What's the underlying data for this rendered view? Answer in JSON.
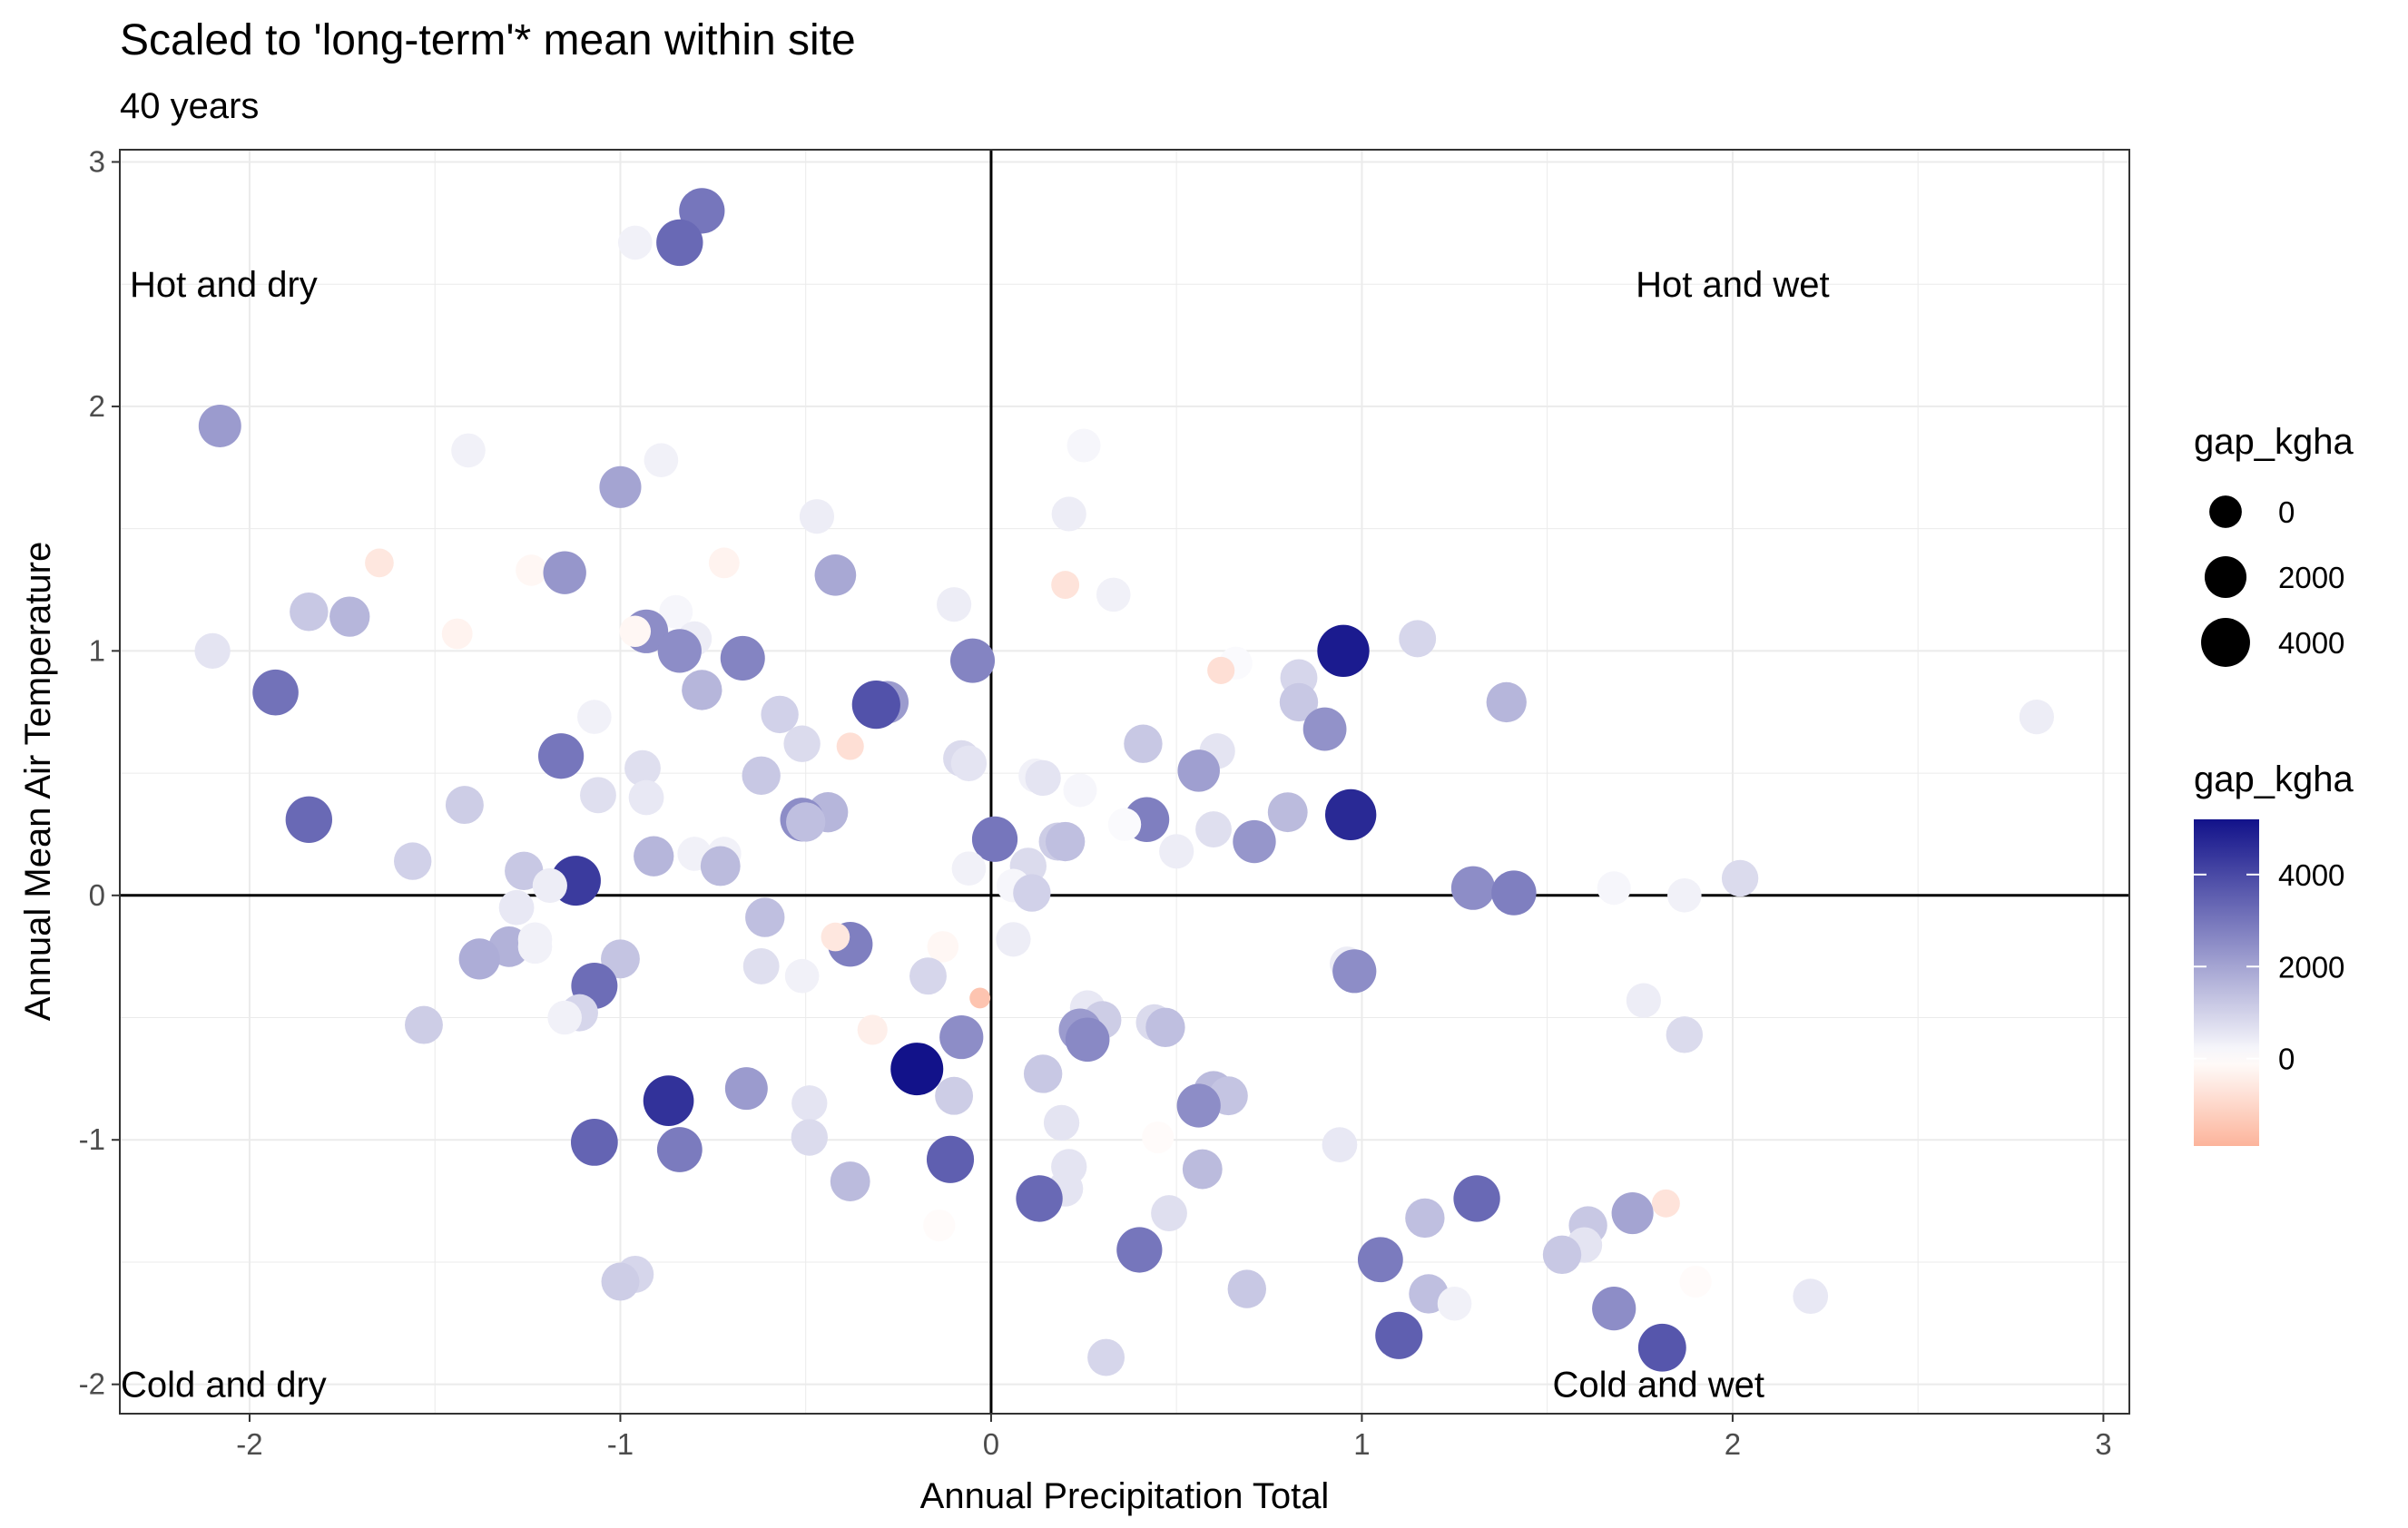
{
  "chart_data": {
    "type": "scatter",
    "title": "Scaled to 'long-term'* mean within site",
    "subtitle": "40 years",
    "xlabel": "Annual Precipitation Total",
    "ylabel": "Annual Mean Air Temperature",
    "xlim": [
      -2.35,
      3.07
    ],
    "ylim": [
      -2.12,
      3.05
    ],
    "x_ticks": [
      -2,
      -1,
      0,
      1,
      2,
      3
    ],
    "y_ticks": [
      -2,
      -1,
      0,
      1,
      2,
      3
    ],
    "x_tick_labels": [
      "-2",
      "-1",
      "0",
      "1",
      "2",
      "3"
    ],
    "y_tick_labels": [
      "-2",
      "-1",
      "0",
      "1",
      "2",
      "3"
    ],
    "grid": true,
    "reference_lines": {
      "x": 0,
      "y": 0
    },
    "quadrant_labels": [
      {
        "text": "Hot and dry",
        "x": -2.07,
        "y": 2.5
      },
      {
        "text": "Hot and wet",
        "x": 2.0,
        "y": 2.5
      },
      {
        "text": "Cold and dry",
        "x": -2.07,
        "y": -2.0
      },
      {
        "text": "Cold and wet",
        "x": 1.8,
        "y": -2.0
      }
    ],
    "size_legend": {
      "title": "gap_kgha",
      "breaks": [
        0,
        2000,
        4000
      ],
      "labels": [
        "0",
        "2000",
        "4000"
      ]
    },
    "color_legend": {
      "title": "gap_kgha",
      "breaks": [
        0,
        2000,
        4000
      ],
      "labels": [
        "0",
        "2000",
        "4000"
      ],
      "range": [
        -1900,
        5200
      ],
      "colors": {
        "low": "#fcb49b",
        "mid": "#ffffff",
        "high": "#12128a"
      }
    },
    "points": [
      {
        "x": -0.78,
        "y": 2.8,
        "gap_kgha": 3000
      },
      {
        "x": -0.84,
        "y": 2.67,
        "gap_kgha": 3300
      },
      {
        "x": -0.96,
        "y": 2.67,
        "gap_kgha": 300
      },
      {
        "x": -2.08,
        "y": 1.92,
        "gap_kgha": 2200
      },
      {
        "x": 0.25,
        "y": 1.84,
        "gap_kgha": 200
      },
      {
        "x": -1.41,
        "y": 1.82,
        "gap_kgha": 300
      },
      {
        "x": -0.89,
        "y": 1.78,
        "gap_kgha": 300
      },
      {
        "x": -1.0,
        "y": 1.67,
        "gap_kgha": 2000
      },
      {
        "x": -0.47,
        "y": 1.55,
        "gap_kgha": 400
      },
      {
        "x": 0.21,
        "y": 1.56,
        "gap_kgha": 400
      },
      {
        "x": -1.65,
        "y": 1.36,
        "gap_kgha": -600
      },
      {
        "x": -0.72,
        "y": 1.36,
        "gap_kgha": -300
      },
      {
        "x": -1.24,
        "y": 1.33,
        "gap_kgha": -200
      },
      {
        "x": -1.15,
        "y": 1.32,
        "gap_kgha": 2300
      },
      {
        "x": -0.42,
        "y": 1.31,
        "gap_kgha": 1900
      },
      {
        "x": 0.2,
        "y": 1.27,
        "gap_kgha": -700
      },
      {
        "x": 0.33,
        "y": 1.23,
        "gap_kgha": 300
      },
      {
        "x": -0.1,
        "y": 1.19,
        "gap_kgha": 400
      },
      {
        "x": -1.84,
        "y": 1.16,
        "gap_kgha": 1200
      },
      {
        "x": -0.85,
        "y": 1.16,
        "gap_kgha": 200
      },
      {
        "x": -1.73,
        "y": 1.14,
        "gap_kgha": 1600
      },
      {
        "x": -1.44,
        "y": 1.07,
        "gap_kgha": -300
      },
      {
        "x": -0.93,
        "y": 1.08,
        "gap_kgha": 2500
      },
      {
        "x": -0.96,
        "y": 1.08,
        "gap_kgha": -200
      },
      {
        "x": -0.8,
        "y": 1.05,
        "gap_kgha": 400
      },
      {
        "x": 1.15,
        "y": 1.05,
        "gap_kgha": 900
      },
      {
        "x": -2.1,
        "y": 1.0,
        "gap_kgha": 600
      },
      {
        "x": -0.84,
        "y": 1.0,
        "gap_kgha": 2500
      },
      {
        "x": 0.95,
        "y": 1.0,
        "gap_kgha": 5000
      },
      {
        "x": -0.67,
        "y": 0.97,
        "gap_kgha": 2700
      },
      {
        "x": -0.05,
        "y": 0.96,
        "gap_kgha": 2700
      },
      {
        "x": 0.66,
        "y": 0.95,
        "gap_kgha": 100
      },
      {
        "x": 0.62,
        "y": 0.92,
        "gap_kgha": -800
      },
      {
        "x": 0.83,
        "y": 0.89,
        "gap_kgha": 900
      },
      {
        "x": -1.93,
        "y": 0.83,
        "gap_kgha": 3100
      },
      {
        "x": -0.78,
        "y": 0.84,
        "gap_kgha": 1600
      },
      {
        "x": 1.39,
        "y": 0.79,
        "gap_kgha": 1600
      },
      {
        "x": 0.83,
        "y": 0.79,
        "gap_kgha": 1200
      },
      {
        "x": -0.28,
        "y": 0.79,
        "gap_kgha": 2200
      },
      {
        "x": -0.31,
        "y": 0.78,
        "gap_kgha": 3800
      },
      {
        "x": -0.57,
        "y": 0.74,
        "gap_kgha": 1000
      },
      {
        "x": -1.07,
        "y": 0.73,
        "gap_kgha": 300
      },
      {
        "x": 2.82,
        "y": 0.73,
        "gap_kgha": 400
      },
      {
        "x": 0.9,
        "y": 0.68,
        "gap_kgha": 2400
      },
      {
        "x": 0.41,
        "y": 0.62,
        "gap_kgha": 1200
      },
      {
        "x": -0.51,
        "y": 0.62,
        "gap_kgha": 800
      },
      {
        "x": -0.38,
        "y": 0.61,
        "gap_kgha": -800
      },
      {
        "x": 0.61,
        "y": 0.59,
        "gap_kgha": 600
      },
      {
        "x": -1.16,
        "y": 0.57,
        "gap_kgha": 3000
      },
      {
        "x": -0.08,
        "y": 0.56,
        "gap_kgha": 800
      },
      {
        "x": -0.06,
        "y": 0.54,
        "gap_kgha": 600
      },
      {
        "x": -0.94,
        "y": 0.52,
        "gap_kgha": 700
      },
      {
        "x": 0.56,
        "y": 0.51,
        "gap_kgha": 2100
      },
      {
        "x": -0.62,
        "y": 0.49,
        "gap_kgha": 1200
      },
      {
        "x": 0.12,
        "y": 0.49,
        "gap_kgha": 300
      },
      {
        "x": 0.14,
        "y": 0.48,
        "gap_kgha": 600
      },
      {
        "x": 0.24,
        "y": 0.43,
        "gap_kgha": 200
      },
      {
        "x": -1.06,
        "y": 0.41,
        "gap_kgha": 700
      },
      {
        "x": -0.93,
        "y": 0.4,
        "gap_kgha": 500
      },
      {
        "x": -1.42,
        "y": 0.37,
        "gap_kgha": 1100
      },
      {
        "x": -0.44,
        "y": 0.34,
        "gap_kgha": 1600
      },
      {
        "x": 0.8,
        "y": 0.34,
        "gap_kgha": 1500
      },
      {
        "x": 0.97,
        "y": 0.33,
        "gap_kgha": 4700
      },
      {
        "x": 0.42,
        "y": 0.31,
        "gap_kgha": 2800
      },
      {
        "x": -0.51,
        "y": 0.31,
        "gap_kgha": 2500
      },
      {
        "x": -1.84,
        "y": 0.31,
        "gap_kgha": 3300
      },
      {
        "x": -0.5,
        "y": 0.3,
        "gap_kgha": 1400
      },
      {
        "x": 0.36,
        "y": 0.29,
        "gap_kgha": 100
      },
      {
        "x": 0.6,
        "y": 0.27,
        "gap_kgha": 700
      },
      {
        "x": 0.01,
        "y": 0.23,
        "gap_kgha": 3000
      },
      {
        "x": 0.18,
        "y": 0.22,
        "gap_kgha": 1100
      },
      {
        "x": 0.2,
        "y": 0.22,
        "gap_kgha": 1400
      },
      {
        "x": 0.71,
        "y": 0.22,
        "gap_kgha": 2300
      },
      {
        "x": 0.5,
        "y": 0.18,
        "gap_kgha": 400
      },
      {
        "x": -0.91,
        "y": 0.16,
        "gap_kgha": 1600
      },
      {
        "x": -0.8,
        "y": 0.17,
        "gap_kgha": 300
      },
      {
        "x": -0.72,
        "y": 0.17,
        "gap_kgha": 300
      },
      {
        "x": -1.56,
        "y": 0.14,
        "gap_kgha": 1000
      },
      {
        "x": -0.73,
        "y": 0.12,
        "gap_kgha": 1500
      },
      {
        "x": -0.06,
        "y": 0.11,
        "gap_kgha": 300
      },
      {
        "x": 0.1,
        "y": 0.12,
        "gap_kgha": 800
      },
      {
        "x": -1.26,
        "y": 0.1,
        "gap_kgha": 1200
      },
      {
        "x": 2.02,
        "y": 0.07,
        "gap_kgha": 800
      },
      {
        "x": -1.12,
        "y": 0.06,
        "gap_kgha": 4300
      },
      {
        "x": -1.19,
        "y": 0.04,
        "gap_kgha": 400
      },
      {
        "x": 1.3,
        "y": 0.03,
        "gap_kgha": 2500
      },
      {
        "x": 1.68,
        "y": 0.03,
        "gap_kgha": 200
      },
      {
        "x": 0.06,
        "y": 0.04,
        "gap_kgha": 200
      },
      {
        "x": 1.41,
        "y": 0.01,
        "gap_kgha": 2800
      },
      {
        "x": 0.11,
        "y": 0.01,
        "gap_kgha": 1000
      },
      {
        "x": 1.87,
        "y": 0.0,
        "gap_kgha": 300
      },
      {
        "x": -1.28,
        "y": -0.05,
        "gap_kgha": 500
      },
      {
        "x": -0.61,
        "y": -0.09,
        "gap_kgha": 1400
      },
      {
        "x": -0.38,
        "y": -0.2,
        "gap_kgha": 2800
      },
      {
        "x": -0.42,
        "y": -0.17,
        "gap_kgha": -600
      },
      {
        "x": -1.3,
        "y": -0.21,
        "gap_kgha": 1700
      },
      {
        "x": -1.23,
        "y": -0.18,
        "gap_kgha": 300
      },
      {
        "x": -1.23,
        "y": -0.21,
        "gap_kgha": 300
      },
      {
        "x": 0.06,
        "y": -0.18,
        "gap_kgha": 400
      },
      {
        "x": -0.13,
        "y": -0.21,
        "gap_kgha": -200
      },
      {
        "x": -1.38,
        "y": -0.26,
        "gap_kgha": 1800
      },
      {
        "x": -1.0,
        "y": -0.26,
        "gap_kgha": 1300
      },
      {
        "x": 0.96,
        "y": -0.28,
        "gap_kgha": 400
      },
      {
        "x": 0.98,
        "y": -0.31,
        "gap_kgha": 2500
      },
      {
        "x": -0.62,
        "y": -0.29,
        "gap_kgha": 700
      },
      {
        "x": -0.51,
        "y": -0.33,
        "gap_kgha": 300
      },
      {
        "x": -0.17,
        "y": -0.33,
        "gap_kgha": 900
      },
      {
        "x": -1.07,
        "y": -0.37,
        "gap_kgha": 3200
      },
      {
        "x": -0.03,
        "y": -0.42,
        "gap_kgha": -1500
      },
      {
        "x": 1.76,
        "y": -0.43,
        "gap_kgha": 400
      },
      {
        "x": 0.26,
        "y": -0.46,
        "gap_kgha": 500
      },
      {
        "x": -1.11,
        "y": -0.48,
        "gap_kgha": 900
      },
      {
        "x": -1.15,
        "y": -0.5,
        "gap_kgha": 300
      },
      {
        "x": 0.3,
        "y": -0.51,
        "gap_kgha": 1100
      },
      {
        "x": 0.44,
        "y": -0.52,
        "gap_kgha": 800
      },
      {
        "x": 0.47,
        "y": -0.54,
        "gap_kgha": 1400
      },
      {
        "x": -1.53,
        "y": -0.53,
        "gap_kgha": 1100
      },
      {
        "x": 0.24,
        "y": -0.55,
        "gap_kgha": 2200
      },
      {
        "x": -0.32,
        "y": -0.55,
        "gap_kgha": -400
      },
      {
        "x": -0.08,
        "y": -0.58,
        "gap_kgha": 2500
      },
      {
        "x": 0.26,
        "y": -0.59,
        "gap_kgha": 2600
      },
      {
        "x": 1.87,
        "y": -0.57,
        "gap_kgha": 800
      },
      {
        "x": -0.2,
        "y": -0.71,
        "gap_kgha": 5200
      },
      {
        "x": 0.14,
        "y": -0.73,
        "gap_kgha": 1200
      },
      {
        "x": -0.66,
        "y": -0.79,
        "gap_kgha": 2200
      },
      {
        "x": 0.6,
        "y": -0.8,
        "gap_kgha": 1500
      },
      {
        "x": 0.64,
        "y": -0.82,
        "gap_kgha": 1300
      },
      {
        "x": -0.1,
        "y": -0.82,
        "gap_kgha": 1100
      },
      {
        "x": -0.87,
        "y": -0.84,
        "gap_kgha": 4500
      },
      {
        "x": -0.49,
        "y": -0.85,
        "gap_kgha": 600
      },
      {
        "x": 0.56,
        "y": -0.86,
        "gap_kgha": 2500
      },
      {
        "x": 0.19,
        "y": -0.93,
        "gap_kgha": 600
      },
      {
        "x": -0.49,
        "y": -0.99,
        "gap_kgha": 800
      },
      {
        "x": 0.45,
        "y": -0.99,
        "gap_kgha": -100
      },
      {
        "x": 0.94,
        "y": -1.02,
        "gap_kgha": 500
      },
      {
        "x": -1.07,
        "y": -1.01,
        "gap_kgha": 3400
      },
      {
        "x": -0.84,
        "y": -1.04,
        "gap_kgha": 2900
      },
      {
        "x": -0.11,
        "y": -1.08,
        "gap_kgha": 3500
      },
      {
        "x": 0.21,
        "y": -1.11,
        "gap_kgha": 600
      },
      {
        "x": 0.57,
        "y": -1.12,
        "gap_kgha": 1500
      },
      {
        "x": -0.38,
        "y": -1.17,
        "gap_kgha": 1500
      },
      {
        "x": 0.2,
        "y": -1.2,
        "gap_kgha": 600
      },
      {
        "x": 0.13,
        "y": -1.24,
        "gap_kgha": 3300
      },
      {
        "x": 1.31,
        "y": -1.24,
        "gap_kgha": 3300
      },
      {
        "x": 1.82,
        "y": -1.26,
        "gap_kgha": -700
      },
      {
        "x": 1.73,
        "y": -1.3,
        "gap_kgha": 2000
      },
      {
        "x": 0.48,
        "y": -1.3,
        "gap_kgha": 700
      },
      {
        "x": 1.17,
        "y": -1.32,
        "gap_kgha": 1400
      },
      {
        "x": 1.61,
        "y": -1.35,
        "gap_kgha": 1200
      },
      {
        "x": -0.14,
        "y": -1.35,
        "gap_kgha": -100
      },
      {
        "x": 1.6,
        "y": -1.43,
        "gap_kgha": 600
      },
      {
        "x": 0.4,
        "y": -1.45,
        "gap_kgha": 3000
      },
      {
        "x": 1.54,
        "y": -1.47,
        "gap_kgha": 1200
      },
      {
        "x": 1.05,
        "y": -1.49,
        "gap_kgha": 2900
      },
      {
        "x": -0.96,
        "y": -1.55,
        "gap_kgha": 900
      },
      {
        "x": -1.0,
        "y": -1.58,
        "gap_kgha": 1100
      },
      {
        "x": 1.9,
        "y": -1.58,
        "gap_kgha": -100
      },
      {
        "x": 0.69,
        "y": -1.61,
        "gap_kgha": 1200
      },
      {
        "x": 1.18,
        "y": -1.63,
        "gap_kgha": 1400
      },
      {
        "x": 2.21,
        "y": -1.64,
        "gap_kgha": 500
      },
      {
        "x": 1.25,
        "y": -1.67,
        "gap_kgha": 300
      },
      {
        "x": 1.68,
        "y": -1.69,
        "gap_kgha": 2500
      },
      {
        "x": 1.1,
        "y": -1.8,
        "gap_kgha": 3500
      },
      {
        "x": 1.81,
        "y": -1.85,
        "gap_kgha": 3700
      },
      {
        "x": 0.31,
        "y": -1.89,
        "gap_kgha": 900
      }
    ]
  }
}
